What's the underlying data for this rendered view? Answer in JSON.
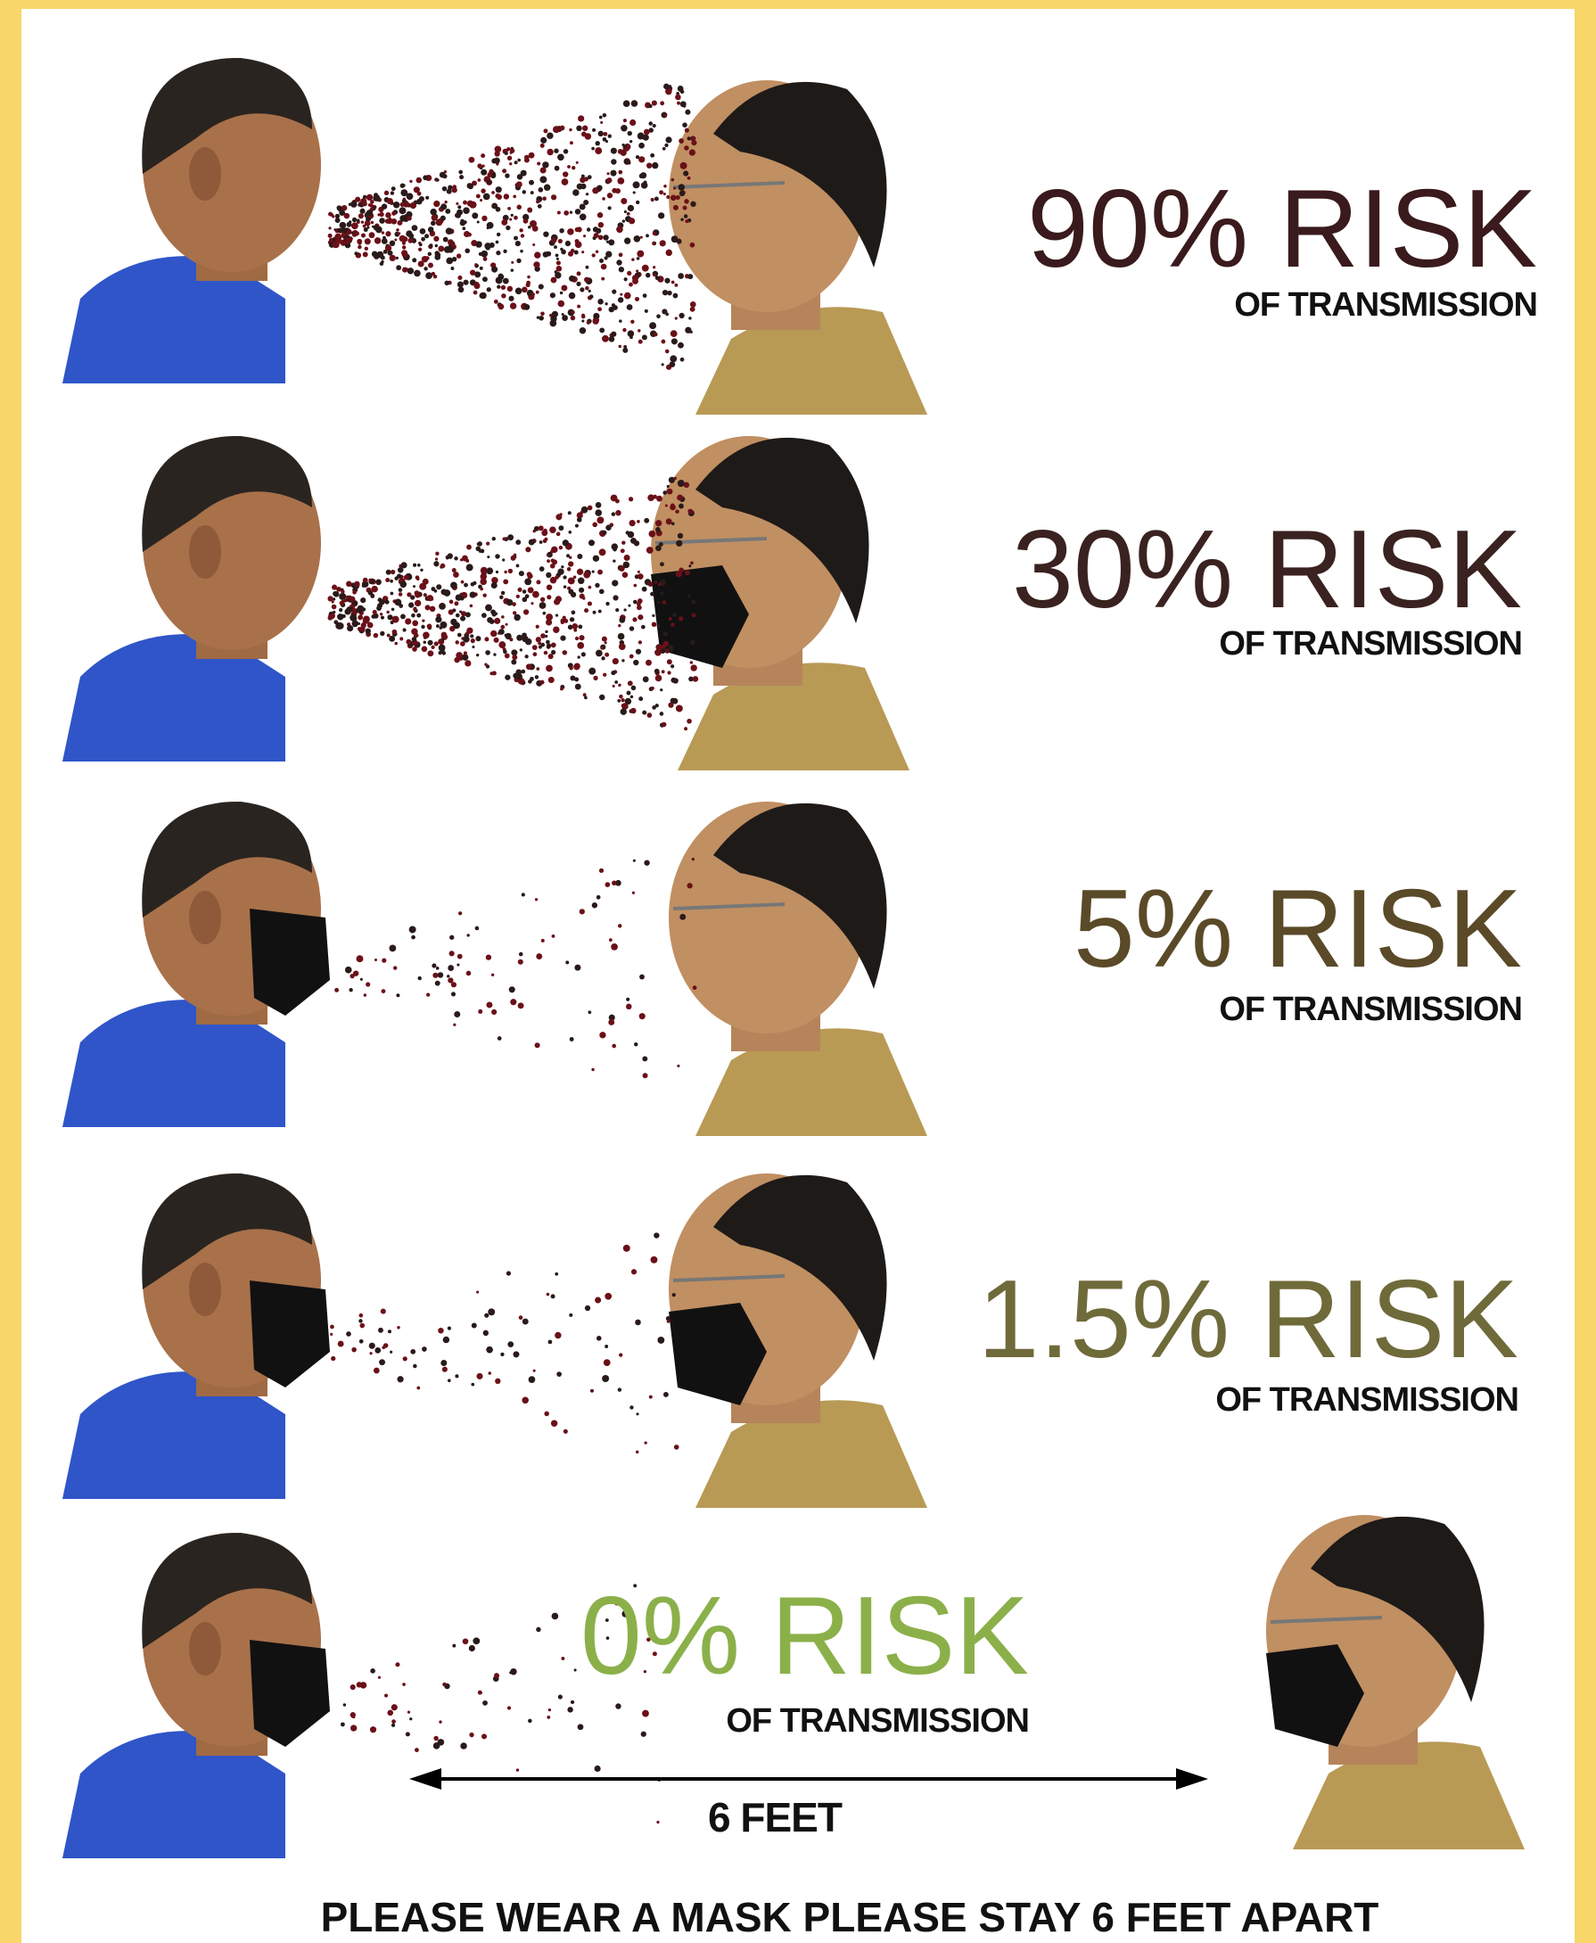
{
  "rows": [
    {
      "risk": "90% RISK",
      "detail": "OF TRANSMISSION"
    },
    {
      "risk": "30% RISK",
      "detail": "OF TRANSMISSION"
    },
    {
      "risk": "5% RISK",
      "detail": "OF TRANSMISSION"
    },
    {
      "risk": "1.5% RISK",
      "detail": "OF TRANSMISSION"
    },
    {
      "risk": "0% RISK",
      "detail": "OF TRANSMISSION"
    }
  ],
  "distance": "6 FEET",
  "footer": "PLEASE WEAR A MASK PLEASE STAY 6 FEET APART"
}
